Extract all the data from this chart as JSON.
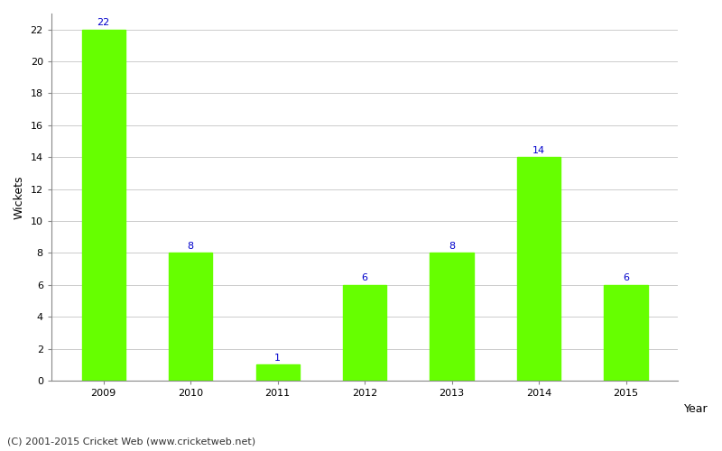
{
  "years": [
    "2009",
    "2010",
    "2011",
    "2012",
    "2013",
    "2014",
    "2015"
  ],
  "wickets": [
    22,
    8,
    1,
    6,
    8,
    14,
    6
  ],
  "bar_color": "#66ff00",
  "bar_edge_color": "#66ff00",
  "label_color": "#0000cc",
  "label_fontsize": 8,
  "xlabel": "Year",
  "ylabel": "Wickets",
  "ylim": [
    0,
    23
  ],
  "yticks": [
    0,
    2,
    4,
    6,
    8,
    10,
    12,
    14,
    16,
    18,
    20,
    22
  ],
  "grid_color": "#cccccc",
  "bg_color": "#ffffff",
  "footnote": "(C) 2001-2015 Cricket Web (www.cricketweb.net)",
  "footnote_fontsize": 8,
  "footnote_color": "#333333",
  "axis_label_fontsize": 9,
  "tick_fontsize": 8,
  "spine_color": "#888888"
}
